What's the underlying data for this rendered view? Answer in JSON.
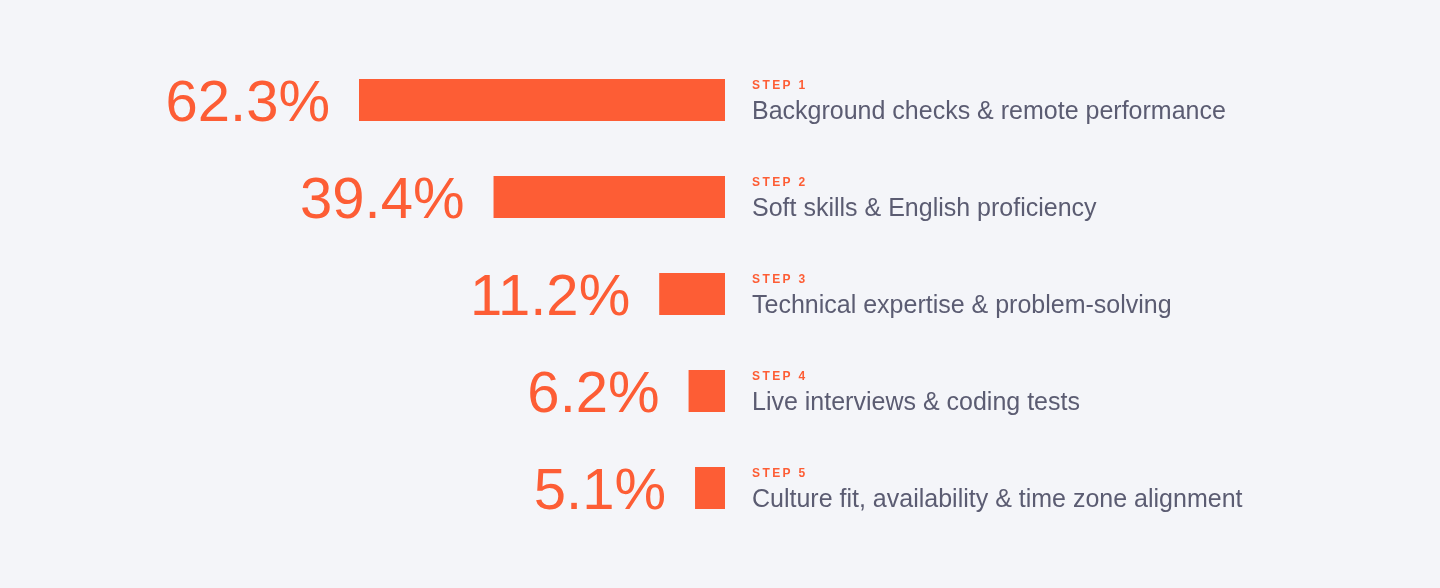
{
  "chart_data": {
    "type": "bar",
    "orientation": "horizontal",
    "categories": [
      "Background checks & remote performance",
      "Soft skills & English proficiency",
      "Technical expertise & problem-solving",
      "Live interviews & coding tests",
      "Culture fit, availability & time zone alignment"
    ],
    "values": [
      62.3,
      39.4,
      11.2,
      6.2,
      5.1
    ],
    "color": "#fd5d35",
    "value_labels": [
      "62.3%",
      "39.4%",
      "11.2%",
      "6.2%",
      "5.1%"
    ],
    "xlim": [
      62.3,
      0
    ],
    "tick_labels": "y",
    "grid": false,
    "legend": false,
    "annotations": [
      "STEP 1",
      "STEP 2",
      "STEP 3",
      "STEP 4",
      "STEP 5"
    ]
  }
}
